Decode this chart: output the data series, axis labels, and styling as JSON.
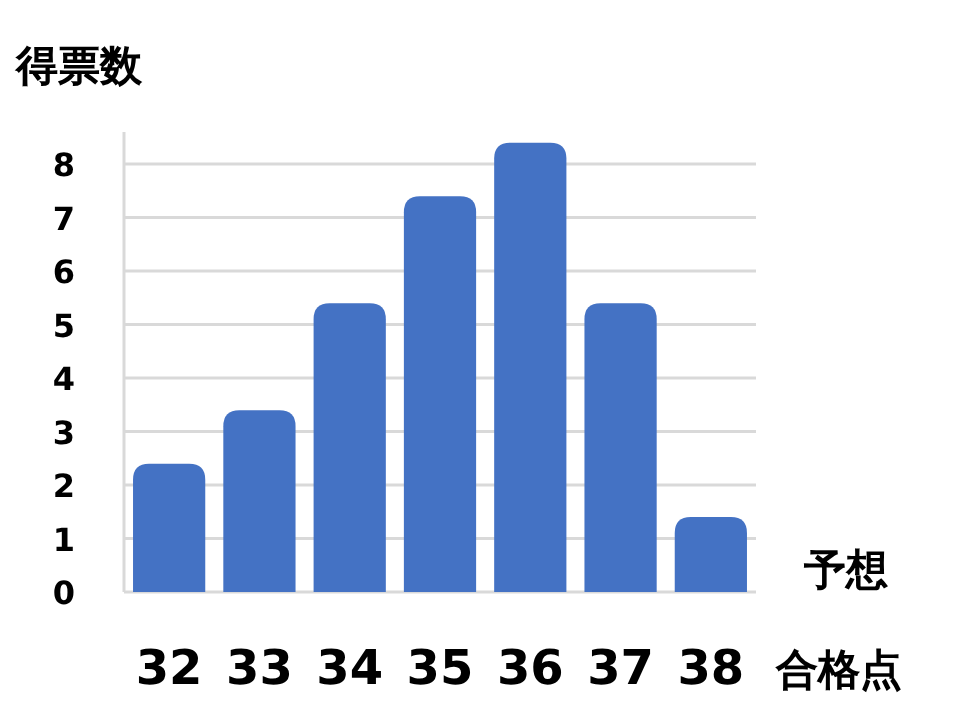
{
  "chart_data": {
    "type": "bar",
    "ylabel": "得票数",
    "xlabel": "合格点",
    "annotations": [
      "予想"
    ],
    "categories": [
      "32",
      "33",
      "34",
      "35",
      "36",
      "37",
      "38"
    ],
    "values": [
      2.4,
      3.4,
      5.4,
      7.4,
      8.4,
      5.4,
      1.4
    ],
    "color": "#4472c4",
    "ylim": [
      0,
      8.6
    ],
    "yticks": [
      0,
      1,
      2,
      3,
      4,
      5,
      6,
      7,
      8
    ],
    "grid": "y"
  }
}
